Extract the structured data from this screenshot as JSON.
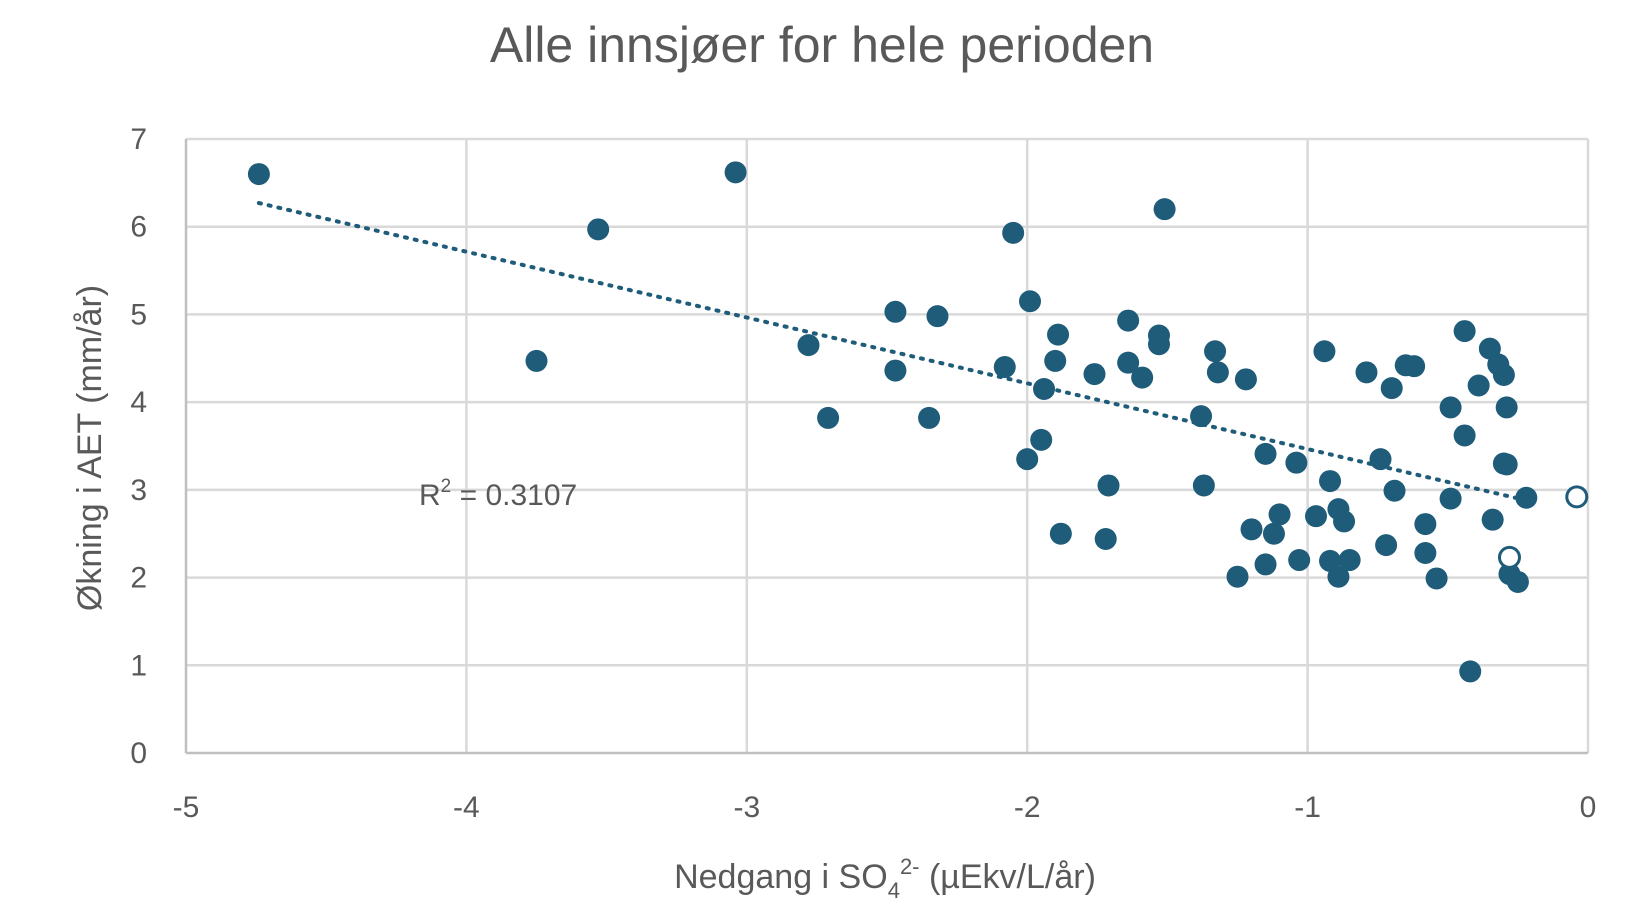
{
  "chart_data": {
    "type": "scatter",
    "title": "Alle innsjøer for hele perioden",
    "xlabel": {
      "main": "Nedgang i SO",
      "sub": "4",
      "sup": "2-",
      "rest": " (µEkv/L/år)"
    },
    "ylabel": "Økning i AET (mm/år)",
    "xlim": [
      -5,
      0
    ],
    "ylim": [
      0,
      7
    ],
    "x_ticks": [
      "-5",
      "-4",
      "-3",
      "-2",
      "-1",
      "0"
    ],
    "y_ticks": [
      "0",
      "1",
      "2",
      "3",
      "4",
      "5",
      "6",
      "7"
    ],
    "grid": true,
    "marker_color": "#1f5c7a",
    "trendline": {
      "style": "dotted",
      "x": [
        -4.74,
        -0.26
      ],
      "y": [
        6.27,
        2.91
      ]
    },
    "annotation": {
      "text": "R² = 0.3107",
      "main": "R",
      "sup": "2",
      "rest": " = 0.3107"
    },
    "series": [
      {
        "marker": "filled",
        "points": [
          [
            -4.74,
            6.6
          ],
          [
            -3.75,
            4.47
          ],
          [
            -3.53,
            5.97
          ],
          [
            -3.04,
            6.62
          ],
          [
            -2.78,
            4.65
          ],
          [
            -2.71,
            3.82
          ],
          [
            -2.47,
            5.03
          ],
          [
            -2.47,
            4.36
          ],
          [
            -2.35,
            3.82
          ],
          [
            -2.32,
            4.98
          ],
          [
            -2.08,
            4.4
          ],
          [
            -2.05,
            5.93
          ],
          [
            -2.0,
            3.35
          ],
          [
            -1.99,
            5.15
          ],
          [
            -1.95,
            3.57
          ],
          [
            -1.94,
            4.15
          ],
          [
            -1.9,
            4.47
          ],
          [
            -1.89,
            4.77
          ],
          [
            -1.88,
            2.5
          ],
          [
            -1.76,
            4.32
          ],
          [
            -1.72,
            2.44
          ],
          [
            -1.71,
            3.05
          ],
          [
            -1.64,
            4.93
          ],
          [
            -1.64,
            4.45
          ],
          [
            -1.59,
            4.28
          ],
          [
            -1.53,
            4.76
          ],
          [
            -1.53,
            4.66
          ],
          [
            -1.51,
            6.2
          ],
          [
            -1.38,
            3.84
          ],
          [
            -1.37,
            3.05
          ],
          [
            -1.33,
            4.58
          ],
          [
            -1.32,
            4.34
          ],
          [
            -1.22,
            4.26
          ],
          [
            -1.2,
            2.55
          ],
          [
            -1.25,
            2.01
          ],
          [
            -1.15,
            3.41
          ],
          [
            -1.15,
            2.15
          ],
          [
            -1.12,
            2.5
          ],
          [
            -1.1,
            2.72
          ],
          [
            -1.04,
            3.31
          ],
          [
            -1.03,
            2.2
          ],
          [
            -0.97,
            2.7
          ],
          [
            -0.94,
            4.58
          ],
          [
            -0.92,
            3.1
          ],
          [
            -0.92,
            2.19
          ],
          [
            -0.89,
            2.78
          ],
          [
            -0.89,
            2.01
          ],
          [
            -0.87,
            2.64
          ],
          [
            -0.85,
            2.2
          ],
          [
            -0.79,
            4.34
          ],
          [
            -0.74,
            3.35
          ],
          [
            -0.72,
            2.37
          ],
          [
            -0.7,
            4.16
          ],
          [
            -0.69,
            2.99
          ],
          [
            -0.65,
            4.42
          ],
          [
            -0.62,
            4.41
          ],
          [
            -0.58,
            2.28
          ],
          [
            -0.58,
            2.61
          ],
          [
            -0.54,
            1.99
          ],
          [
            -0.49,
            3.94
          ],
          [
            -0.49,
            2.9
          ],
          [
            -0.44,
            4.81
          ],
          [
            -0.44,
            3.62
          ],
          [
            -0.42,
            0.93
          ],
          [
            -0.39,
            4.19
          ],
          [
            -0.35,
            4.61
          ],
          [
            -0.34,
            2.66
          ],
          [
            -0.32,
            4.43
          ],
          [
            -0.3,
            4.31
          ],
          [
            -0.3,
            3.3
          ],
          [
            -0.29,
            3.94
          ],
          [
            -0.29,
            3.29
          ],
          [
            -0.28,
            2.04
          ],
          [
            -0.25,
            1.95
          ],
          [
            -0.22,
            2.91
          ]
        ]
      },
      {
        "marker": "open",
        "points": [
          [
            -0.04,
            2.92
          ],
          [
            -0.28,
            2.23
          ]
        ]
      }
    ]
  }
}
